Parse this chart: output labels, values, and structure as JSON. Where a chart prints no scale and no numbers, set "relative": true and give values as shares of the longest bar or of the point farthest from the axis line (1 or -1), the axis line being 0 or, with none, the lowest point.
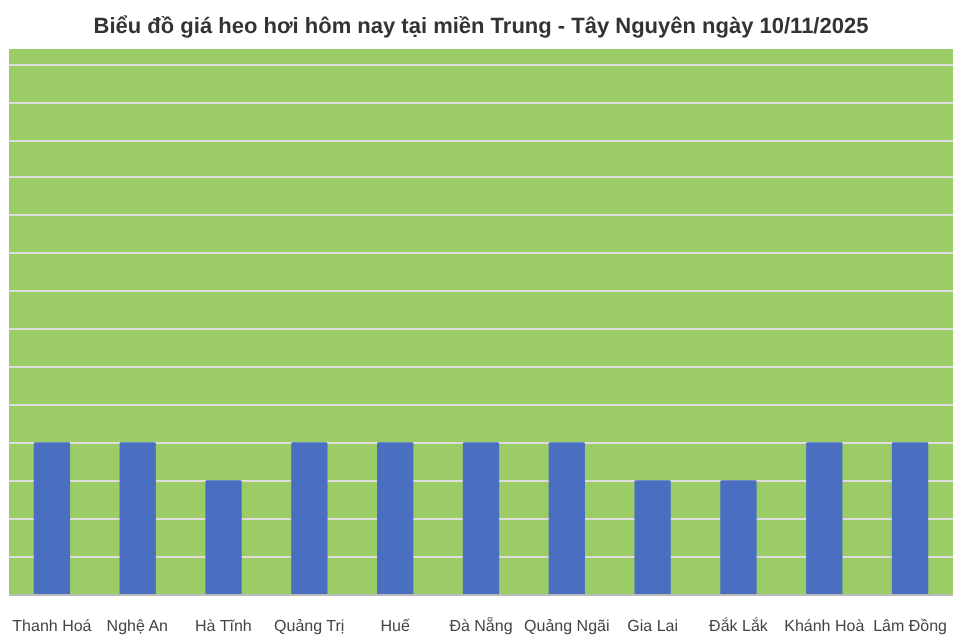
{
  "chart_data": {
    "type": "bar",
    "title": "Biểu đồ giá heo hơi hôm nay tại miền Trung - Tây Nguyên ngày 10/11/2025",
    "relative": true,
    "grid": "y",
    "color": "#4a6fc1",
    "categories": [
      "Thanh Hoá",
      "Nghệ An",
      "Hà Tĩnh",
      "Quảng Trị",
      "Huế",
      "Đà Nẵng",
      "Quảng Ngãi",
      "Gia Lai",
      "Đắk Lắk",
      "Khánh Hoà",
      "Lâm Đồng"
    ],
    "values": [
      1,
      1,
      0.75,
      1,
      1,
      1,
      1,
      0.75,
      0.75,
      1,
      1
    ]
  }
}
